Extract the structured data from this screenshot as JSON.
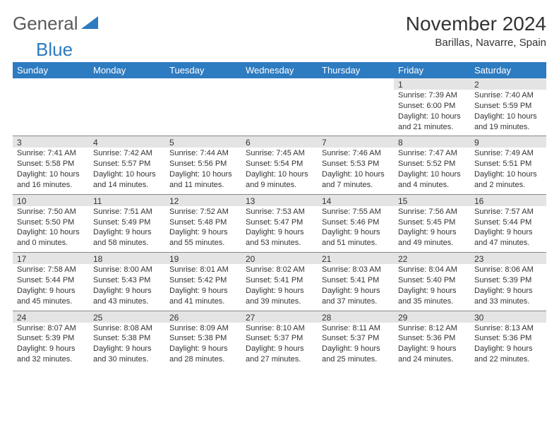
{
  "logo": {
    "part1": "General",
    "part2": "Blue"
  },
  "title": "November 2024",
  "location": "Barillas, Navarre, Spain",
  "colors": {
    "header_bg": "#2d7bc0",
    "daynum_bg": "#e4e4e4",
    "border": "#888888",
    "text": "#333333"
  },
  "weekdays": [
    "Sunday",
    "Monday",
    "Tuesday",
    "Wednesday",
    "Thursday",
    "Friday",
    "Saturday"
  ],
  "weeks": [
    [
      null,
      null,
      null,
      null,
      null,
      {
        "n": "1",
        "sr": "Sunrise: 7:39 AM",
        "ss": "Sunset: 6:00 PM",
        "d1": "Daylight: 10 hours",
        "d2": "and 21 minutes."
      },
      {
        "n": "2",
        "sr": "Sunrise: 7:40 AM",
        "ss": "Sunset: 5:59 PM",
        "d1": "Daylight: 10 hours",
        "d2": "and 19 minutes."
      }
    ],
    [
      {
        "n": "3",
        "sr": "Sunrise: 7:41 AM",
        "ss": "Sunset: 5:58 PM",
        "d1": "Daylight: 10 hours",
        "d2": "and 16 minutes."
      },
      {
        "n": "4",
        "sr": "Sunrise: 7:42 AM",
        "ss": "Sunset: 5:57 PM",
        "d1": "Daylight: 10 hours",
        "d2": "and 14 minutes."
      },
      {
        "n": "5",
        "sr": "Sunrise: 7:44 AM",
        "ss": "Sunset: 5:56 PM",
        "d1": "Daylight: 10 hours",
        "d2": "and 11 minutes."
      },
      {
        "n": "6",
        "sr": "Sunrise: 7:45 AM",
        "ss": "Sunset: 5:54 PM",
        "d1": "Daylight: 10 hours",
        "d2": "and 9 minutes."
      },
      {
        "n": "7",
        "sr": "Sunrise: 7:46 AM",
        "ss": "Sunset: 5:53 PM",
        "d1": "Daylight: 10 hours",
        "d2": "and 7 minutes."
      },
      {
        "n": "8",
        "sr": "Sunrise: 7:47 AM",
        "ss": "Sunset: 5:52 PM",
        "d1": "Daylight: 10 hours",
        "d2": "and 4 minutes."
      },
      {
        "n": "9",
        "sr": "Sunrise: 7:49 AM",
        "ss": "Sunset: 5:51 PM",
        "d1": "Daylight: 10 hours",
        "d2": "and 2 minutes."
      }
    ],
    [
      {
        "n": "10",
        "sr": "Sunrise: 7:50 AM",
        "ss": "Sunset: 5:50 PM",
        "d1": "Daylight: 10 hours",
        "d2": "and 0 minutes."
      },
      {
        "n": "11",
        "sr": "Sunrise: 7:51 AM",
        "ss": "Sunset: 5:49 PM",
        "d1": "Daylight: 9 hours",
        "d2": "and 58 minutes."
      },
      {
        "n": "12",
        "sr": "Sunrise: 7:52 AM",
        "ss": "Sunset: 5:48 PM",
        "d1": "Daylight: 9 hours",
        "d2": "and 55 minutes."
      },
      {
        "n": "13",
        "sr": "Sunrise: 7:53 AM",
        "ss": "Sunset: 5:47 PM",
        "d1": "Daylight: 9 hours",
        "d2": "and 53 minutes."
      },
      {
        "n": "14",
        "sr": "Sunrise: 7:55 AM",
        "ss": "Sunset: 5:46 PM",
        "d1": "Daylight: 9 hours",
        "d2": "and 51 minutes."
      },
      {
        "n": "15",
        "sr": "Sunrise: 7:56 AM",
        "ss": "Sunset: 5:45 PM",
        "d1": "Daylight: 9 hours",
        "d2": "and 49 minutes."
      },
      {
        "n": "16",
        "sr": "Sunrise: 7:57 AM",
        "ss": "Sunset: 5:44 PM",
        "d1": "Daylight: 9 hours",
        "d2": "and 47 minutes."
      }
    ],
    [
      {
        "n": "17",
        "sr": "Sunrise: 7:58 AM",
        "ss": "Sunset: 5:44 PM",
        "d1": "Daylight: 9 hours",
        "d2": "and 45 minutes."
      },
      {
        "n": "18",
        "sr": "Sunrise: 8:00 AM",
        "ss": "Sunset: 5:43 PM",
        "d1": "Daylight: 9 hours",
        "d2": "and 43 minutes."
      },
      {
        "n": "19",
        "sr": "Sunrise: 8:01 AM",
        "ss": "Sunset: 5:42 PM",
        "d1": "Daylight: 9 hours",
        "d2": "and 41 minutes."
      },
      {
        "n": "20",
        "sr": "Sunrise: 8:02 AM",
        "ss": "Sunset: 5:41 PM",
        "d1": "Daylight: 9 hours",
        "d2": "and 39 minutes."
      },
      {
        "n": "21",
        "sr": "Sunrise: 8:03 AM",
        "ss": "Sunset: 5:41 PM",
        "d1": "Daylight: 9 hours",
        "d2": "and 37 minutes."
      },
      {
        "n": "22",
        "sr": "Sunrise: 8:04 AM",
        "ss": "Sunset: 5:40 PM",
        "d1": "Daylight: 9 hours",
        "d2": "and 35 minutes."
      },
      {
        "n": "23",
        "sr": "Sunrise: 8:06 AM",
        "ss": "Sunset: 5:39 PM",
        "d1": "Daylight: 9 hours",
        "d2": "and 33 minutes."
      }
    ],
    [
      {
        "n": "24",
        "sr": "Sunrise: 8:07 AM",
        "ss": "Sunset: 5:39 PM",
        "d1": "Daylight: 9 hours",
        "d2": "and 32 minutes."
      },
      {
        "n": "25",
        "sr": "Sunrise: 8:08 AM",
        "ss": "Sunset: 5:38 PM",
        "d1": "Daylight: 9 hours",
        "d2": "and 30 minutes."
      },
      {
        "n": "26",
        "sr": "Sunrise: 8:09 AM",
        "ss": "Sunset: 5:38 PM",
        "d1": "Daylight: 9 hours",
        "d2": "and 28 minutes."
      },
      {
        "n": "27",
        "sr": "Sunrise: 8:10 AM",
        "ss": "Sunset: 5:37 PM",
        "d1": "Daylight: 9 hours",
        "d2": "and 27 minutes."
      },
      {
        "n": "28",
        "sr": "Sunrise: 8:11 AM",
        "ss": "Sunset: 5:37 PM",
        "d1": "Daylight: 9 hours",
        "d2": "and 25 minutes."
      },
      {
        "n": "29",
        "sr": "Sunrise: 8:12 AM",
        "ss": "Sunset: 5:36 PM",
        "d1": "Daylight: 9 hours",
        "d2": "and 24 minutes."
      },
      {
        "n": "30",
        "sr": "Sunrise: 8:13 AM",
        "ss": "Sunset: 5:36 PM",
        "d1": "Daylight: 9 hours",
        "d2": "and 22 minutes."
      }
    ]
  ]
}
